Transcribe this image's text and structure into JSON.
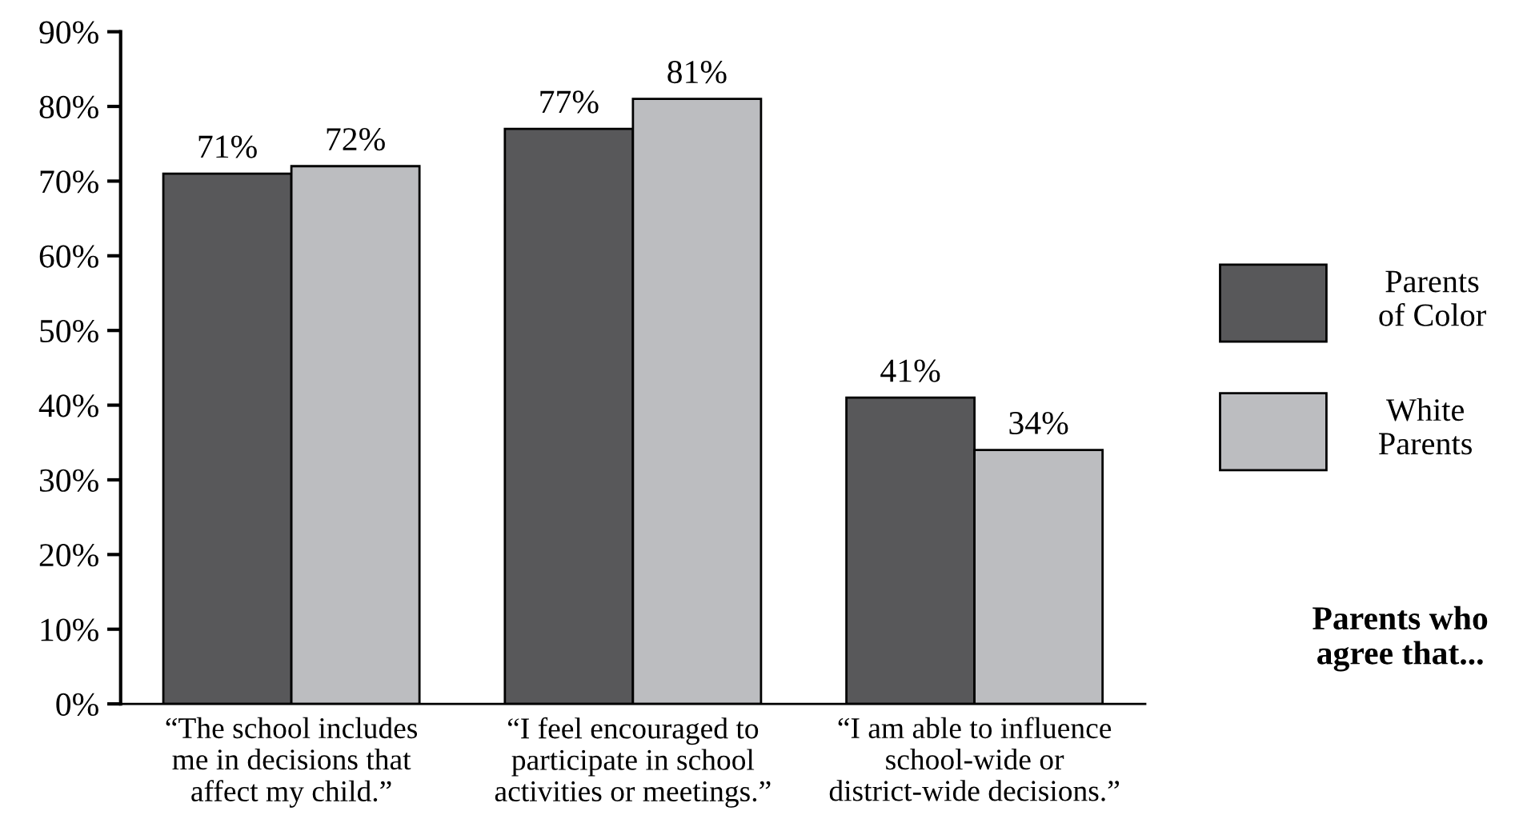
{
  "chart_data": {
    "type": "bar",
    "categories": [
      "“The school includes\nme in decisions that\naffect my child.”",
      "“I feel encouraged to\nparticipate in school\nactivities or meetings.”",
      "“I am able to influence\nschool-wide or\ndistrict-wide decisions.”"
    ],
    "series": [
      {
        "name": "Parents\nof Color",
        "color": "#58585a",
        "values": [
          71,
          77,
          41
        ]
      },
      {
        "name": "White\nParents",
        "color": "#bcbdc0",
        "values": [
          72,
          81,
          34
        ]
      }
    ],
    "ylim": [
      0,
      90
    ],
    "yticks": [
      {
        "value": 0,
        "label": "0%"
      },
      {
        "value": 10,
        "label": "10%"
      },
      {
        "value": 20,
        "label": "20%"
      },
      {
        "value": 30,
        "label": "30%"
      },
      {
        "value": 40,
        "label": "40%"
      },
      {
        "value": 50,
        "label": "50%"
      },
      {
        "value": 60,
        "label": "60%"
      },
      {
        "value": 70,
        "label": "70%"
      },
      {
        "value": 80,
        "label": "80%"
      },
      {
        "value": 90,
        "label": "90%"
      }
    ],
    "value_labels": [
      [
        "71%",
        "77%",
        "41%"
      ],
      [
        "72%",
        "81%",
        "34%"
      ]
    ],
    "legend": "right",
    "grid": false,
    "annotations": [
      "Parents who\nagree that..."
    ]
  }
}
